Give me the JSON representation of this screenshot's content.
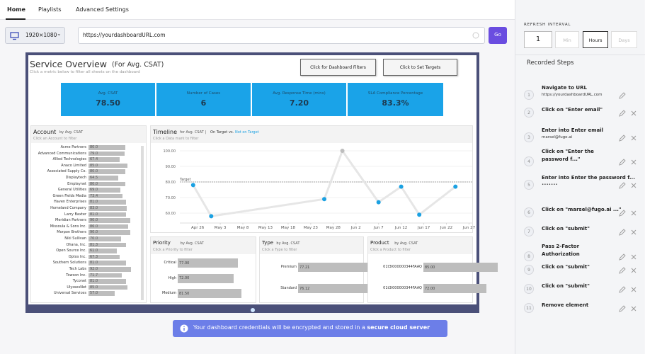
{
  "tabs": [
    "Home",
    "Playlists",
    "Advanced Settings"
  ],
  "resolution": "1920×1080",
  "url": "https://yourdashboardURL.com",
  "go": "Go",
  "refresh": {
    "label": "REFRESH INTERVAL",
    "value": "1",
    "units": [
      "Min",
      "Hours",
      "Days"
    ]
  },
  "steps_title": "Recorded Steps",
  "steps": [
    {
      "num": "1",
      "title": "Navigate to URL",
      "detail": "https://yourdashboardURL.com"
    },
    {
      "num": "2",
      "title": "Click on \"Enter email\""
    },
    {
      "num": "3",
      "title": "Enter into Enter email",
      "detail": "marsel@fugo.ai"
    },
    {
      "num": "4",
      "title": "Click on \"Enter the password f...\""
    },
    {
      "num": "5",
      "title": "Enter into Enter the password f...",
      "detail": "•••••••"
    },
    {
      "num": "6",
      "title": "Click on \"marsel@fugo.ai ...\""
    },
    {
      "num": "7",
      "title": "Click on \"submit\""
    },
    {
      "num": "8",
      "title": "Pass 2-Factor Authorization"
    },
    {
      "num": "9",
      "title": "Click on \"submit\""
    },
    {
      "num": "10",
      "title": "Click on \"submit\""
    },
    {
      "num": "11",
      "title": "Remove element"
    }
  ],
  "notice": {
    "text": "Your dashboard credentials will be encrypted and stored in a ",
    "bold": "secure cloud server"
  },
  "dashboard": {
    "title": "Service Overview",
    "title_suffix": "(For Avg. CSAT)",
    "subtitle": "Click a metric below to filter all sheets on the dashboard",
    "buttons": [
      "Click for Dashboard Filters",
      "Click to Set Targets"
    ],
    "kpis": [
      {
        "label": "Avg. CSAT",
        "value": "78.50"
      },
      {
        "label": "Number of Cases",
        "value": "6"
      },
      {
        "label": "Avg. Response Time (mins)",
        "value": "7.20"
      },
      {
        "label": "SLA Compliance Percentage",
        "value": "83.3%"
      }
    ],
    "kpi_color": "#1aa3e8",
    "account": {
      "title": "Account",
      "by": "by Avg. CSAT",
      "hint": "Click an Account to filter",
      "names": [
        "Acme Partners",
        "Advanced Communications",
        "Allied Technologies",
        "Anaco Limited",
        "Associated Supply Co.",
        "Displaytech",
        "Emplaynet",
        "General Utilities",
        "Green Fields Media",
        "Haven Enterprises",
        "Homeland Company",
        "Larry Baxter",
        "Meridian Partners",
        "Missoula & Sons Inc.",
        "Morpon Brothers",
        "Niki Sullivan",
        "Ohana, Inc.",
        "Open Source Inc.",
        "Optos Inc.",
        "Southern Solutions",
        "Tech Labs",
        "Towson Inc.",
        "Tyconet",
        "UlyssesNet",
        "Universal Services"
      ],
      "values": [
        80.0,
        79.0,
        67.4,
        85.0,
        80.0,
        64.5,
        80.0,
        69.0,
        73.4,
        81.0,
        83.0,
        81.0,
        90.0,
        86.0,
        90.0,
        70.0,
        81.3,
        61.0,
        67.3,
        81.0,
        92.0,
        71.7,
        81.0,
        85.0,
        57.0
      ],
      "value_labels": [
        "80.0",
        "79.0",
        "67.4",
        "85.0",
        "80.0",
        "64.5",
        "80.0",
        "69.0",
        "73.4",
        "81.0",
        "83.0",
        "81.0",
        "90.0",
        "86.0",
        "90.0",
        "70.0",
        "81.3",
        "61.0",
        "67.3",
        "81.0",
        "92.0",
        "71.7",
        "81.0",
        "85.0",
        "57.0"
      ]
    },
    "timeline": {
      "title": "Timeline",
      "by": "for Avg. CSAT |",
      "on": "On Target",
      "vs": "vs.",
      "not": "Not on Target",
      "hint": "Click a Data mark to filter",
      "target_label": "Target",
      "target": 80,
      "ylim": [
        55,
        105
      ],
      "yticks": [
        {
          "value": 60,
          "label": "60.00"
        },
        {
          "value": 70,
          "label": "70.00"
        },
        {
          "value": 80,
          "label": "80.00"
        },
        {
          "value": 90,
          "label": "90.00"
        },
        {
          "value": 100,
          "label": "100.00"
        }
      ],
      "xlim": [
        -0.6,
        12.3
      ],
      "xticks": [
        {
          "value": 0,
          "label": "Apr 26"
        },
        {
          "value": 1,
          "label": "May 3"
        },
        {
          "value": 2,
          "label": "May 8"
        },
        {
          "value": 3,
          "label": "May 13"
        },
        {
          "value": 4,
          "label": "May 18"
        },
        {
          "value": 5,
          "label": "May 23"
        },
        {
          "value": 6,
          "label": "May 28"
        },
        {
          "value": 7,
          "label": "Jun 2"
        },
        {
          "value": 8,
          "label": "Jun 7"
        },
        {
          "value": 9,
          "label": "Jun 12"
        },
        {
          "value": 10,
          "label": "Jun 17"
        },
        {
          "value": 11,
          "label": "Jun 22"
        },
        {
          "value": 12,
          "label": "Jun 27"
        }
      ],
      "x": [
        -0.2,
        0.6,
        5.6,
        6.4,
        8,
        9,
        9.8,
        11.4
      ],
      "values": [
        78,
        58,
        69,
        100,
        67,
        77,
        59,
        77
      ],
      "point_colors": [
        "#1ba1e2",
        "#1ba1e2",
        "#1ba1e2",
        "#bdbdbd",
        "#1ba1e2",
        "#1ba1e2",
        "#1ba1e2",
        "#1ba1e2"
      ],
      "line_color": "#e6e6e6"
    },
    "small": [
      {
        "title": "Priority",
        "by": "by Avg. CSAT",
        "hint": "Click a Priority to filter",
        "categories": [
          "Critical",
          "High",
          "Medium"
        ],
        "values": [
          77.0,
          72.0,
          81.5
        ],
        "value_labels": [
          "77.00",
          "72.00",
          "81.50"
        ]
      },
      {
        "title": "Type",
        "by": "by Avg. CSAT",
        "hint": "Click a Type to filter",
        "categories": [
          "Premium",
          "Standard"
        ],
        "values": [
          77.21,
          76.12
        ]
      },
      {
        "title": "Product",
        "by": "by Avg. CSAT",
        "hint": "Click a Product to filter",
        "categories": [
          "01t3I000000344FAAQ",
          "01t3I000000344FAAQ"
        ],
        "values": [
          85.0,
          72.0
        ],
        "value_labels": [
          "85.00",
          "72.00"
        ]
      }
    ],
    "bar_color": "#bdbdbd"
  }
}
